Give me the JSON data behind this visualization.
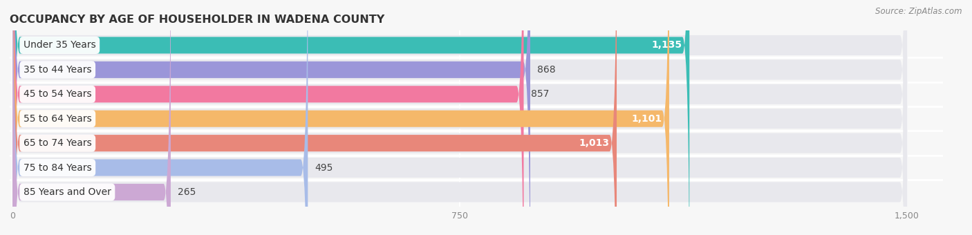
{
  "title": "OCCUPANCY BY AGE OF HOUSEHOLDER IN WADENA COUNTY",
  "source": "Source: ZipAtlas.com",
  "categories": [
    "Under 35 Years",
    "35 to 44 Years",
    "45 to 54 Years",
    "55 to 64 Years",
    "65 to 74 Years",
    "75 to 84 Years",
    "85 Years and Over"
  ],
  "values": [
    1135,
    868,
    857,
    1101,
    1013,
    495,
    265
  ],
  "bar_colors": [
    "#3bbdb5",
    "#9b96d9",
    "#f279a0",
    "#f5b86a",
    "#e8877a",
    "#a8bce8",
    "#cca8d4"
  ],
  "value_inside": [
    true,
    false,
    false,
    true,
    true,
    false,
    false
  ],
  "xlim_max": 1500,
  "xticks": [
    0,
    750,
    1500
  ],
  "bg_color": "#f7f7f7",
  "bar_bg_color": "#e8e8ed",
  "separator_color": "#ffffff",
  "title_fontsize": 11.5,
  "source_fontsize": 8.5,
  "cat_fontsize": 10,
  "val_fontsize": 10,
  "tick_fontsize": 9
}
